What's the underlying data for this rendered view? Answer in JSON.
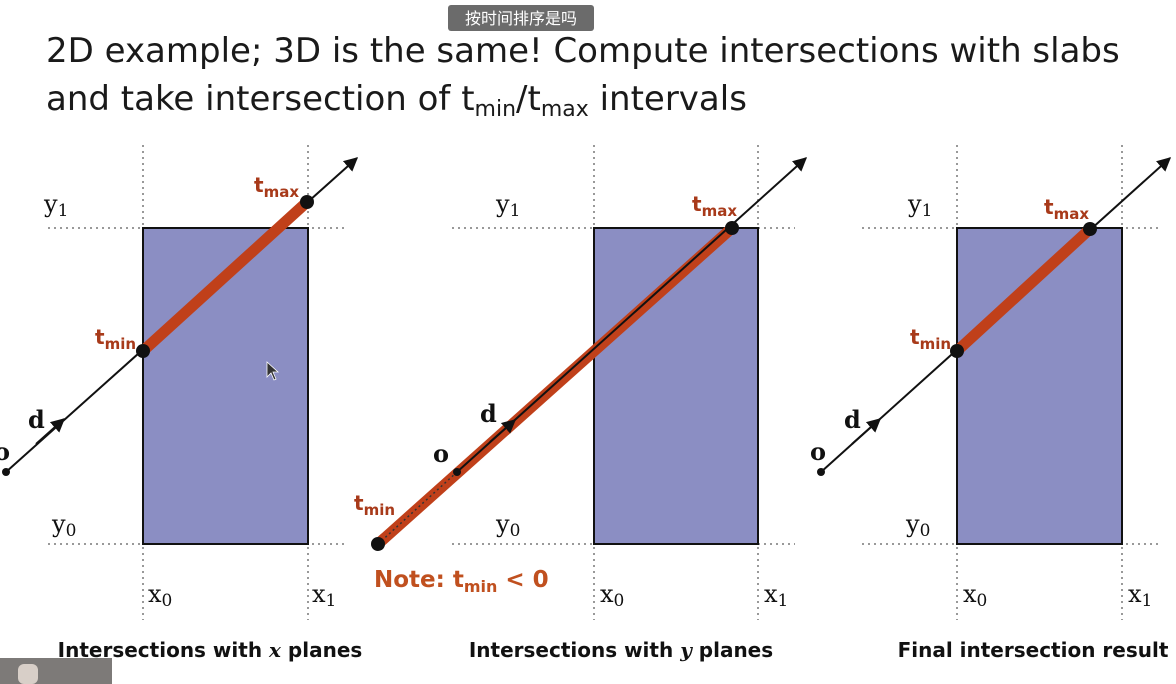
{
  "subtitle_overlay": "按时间排序是吗",
  "header": {
    "line1": "2D example; 3D is the same!  Compute intersections with slabs",
    "line2_prefix": "and take intersection of t",
    "line2_min": "min",
    "line2_mid": "/t",
    "line2_max": "max",
    "line2_suffix": " intervals"
  },
  "labels": {
    "y1_main": "y",
    "y1_sub": "1",
    "y0_main": "y",
    "y0_sub": "0",
    "x0_main": "x",
    "x0_sub": "0",
    "x1_main": "x",
    "x1_sub": "1",
    "d": "d",
    "o": "o",
    "t_main": "t",
    "min_sub": "min",
    "max_sub": "max"
  },
  "panels": [
    {
      "caption_prefix": "Intersections with ",
      "caption_var": "x",
      "caption_suffix": " planes"
    },
    {
      "caption_prefix": "Intersections with ",
      "caption_var": "y",
      "caption_suffix": " planes",
      "note_prefix": "Note:  t",
      "note_sub": "min",
      "note_suffix": " < 0"
    },
    {
      "caption_prefix": "",
      "caption_var": "",
      "caption_suffix": "Final intersection result"
    }
  ],
  "colors": {
    "box_fill": "#8b8ec3",
    "hit_segment": "#c0401a",
    "t_label": "#a83a1a",
    "note": "#c0501f"
  },
  "icons": {
    "cursor": "mouse-pointer-icon"
  }
}
